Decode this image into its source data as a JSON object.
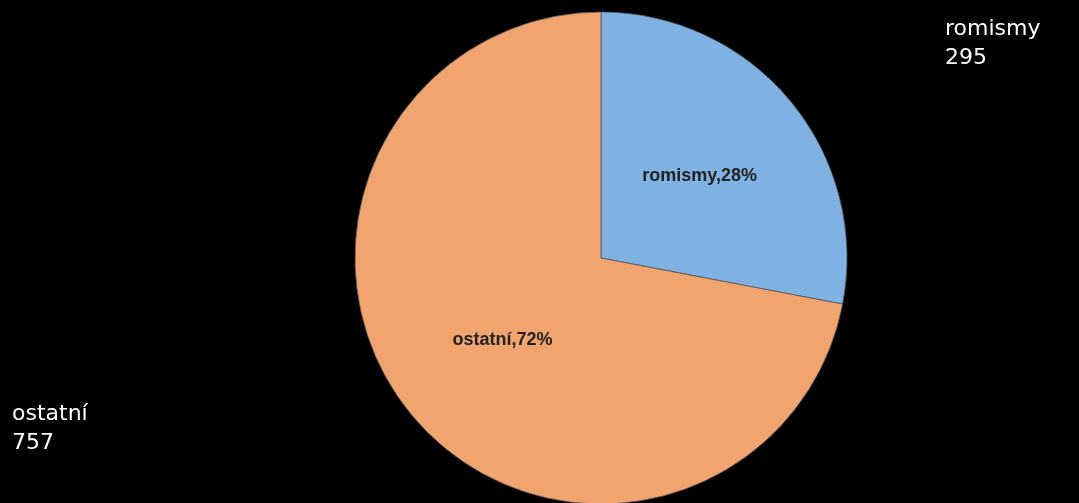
{
  "chart_data": {
    "type": "pie",
    "categories": [
      "romismy",
      "ostatní"
    ],
    "values": [
      28,
      72
    ],
    "colors": [
      "#7fb2e3",
      "#f2a46e"
    ],
    "value_labels": [
      ",28%",
      ",72%"
    ],
    "annotations": [
      "romismy\n295",
      "ostatní\n757"
    ]
  }
}
